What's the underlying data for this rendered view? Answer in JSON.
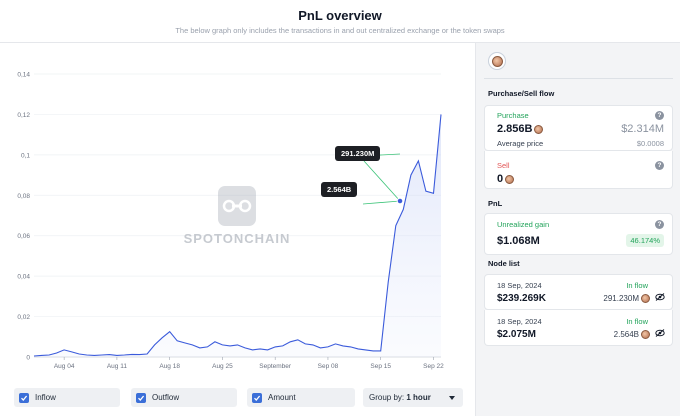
{
  "header": {
    "title": "PnL overview",
    "subtitle": "The below graph only includes the transactions in and out centralized exchange or the token swaps"
  },
  "watermark": "SPOTONCHAIN",
  "chart_data": {
    "type": "line",
    "title": "",
    "xlabel": "",
    "ylabel": "",
    "ylim": [
      0,
      0.14
    ],
    "y_ticks": [
      "0",
      "0,02",
      "0,04",
      "0,06",
      "0,08",
      "0,1",
      "0,12",
      "0,14"
    ],
    "x_ticks": [
      "Aug 04",
      "Aug 11",
      "Aug 18",
      "Aug 25",
      "September",
      "Sep 08",
      "Sep 15",
      "Sep 22"
    ],
    "x_dates": [
      "2024-07-31",
      "2024-08-04",
      "2024-08-11",
      "2024-08-18",
      "2024-08-25",
      "2024-09-01",
      "2024-09-08",
      "2024-09-15",
      "2024-09-22"
    ],
    "series": [
      {
        "color": "#3b5bdb",
        "x": [
          "2024-07-31",
          "2024-08-01",
          "2024-08-02",
          "2024-08-03",
          "2024-08-04",
          "2024-08-05",
          "2024-08-06",
          "2024-08-07",
          "2024-08-08",
          "2024-08-09",
          "2024-08-10",
          "2024-08-11",
          "2024-08-12",
          "2024-08-13",
          "2024-08-14",
          "2024-08-15",
          "2024-08-16",
          "2024-08-17",
          "2024-08-18",
          "2024-08-19",
          "2024-08-20",
          "2024-08-21",
          "2024-08-22",
          "2024-08-23",
          "2024-08-24",
          "2024-08-25",
          "2024-08-26",
          "2024-08-27",
          "2024-08-28",
          "2024-08-29",
          "2024-08-30",
          "2024-08-31",
          "2024-09-01",
          "2024-09-02",
          "2024-09-03",
          "2024-09-04",
          "2024-09-05",
          "2024-09-06",
          "2024-09-07",
          "2024-09-08",
          "2024-09-09",
          "2024-09-10",
          "2024-09-11",
          "2024-09-12",
          "2024-09-13",
          "2024-09-14",
          "2024-09-15",
          "2024-09-16",
          "2024-09-17",
          "2024-09-18",
          "2024-09-19",
          "2024-09-20",
          "2024-09-21",
          "2024-09-22",
          "2024-09-23"
        ],
        "values": [
          0.0005,
          0.0008,
          0.001,
          0.002,
          0.0035,
          0.0025,
          0.0015,
          0.001,
          0.0008,
          0.001,
          0.0012,
          0.0008,
          0.001,
          0.0013,
          0.0012,
          0.0015,
          0.006,
          0.0095,
          0.0125,
          0.008,
          0.007,
          0.006,
          0.0045,
          0.005,
          0.0075,
          0.006,
          0.0055,
          0.006,
          0.0045,
          0.0035,
          0.004,
          0.0035,
          0.005,
          0.0055,
          0.0075,
          0.0085,
          0.0065,
          0.006,
          0.0045,
          0.005,
          0.0065,
          0.0055,
          0.005,
          0.004,
          0.0035,
          0.003,
          0.003,
          0.037,
          0.065,
          0.073,
          0.09,
          0.097,
          0.082,
          0.081,
          0.12
        ]
      }
    ],
    "annotations": [
      {
        "label": "291.230M",
        "x": "2024-09-18"
      },
      {
        "label": "2.564B",
        "x": "2024-09-18"
      }
    ]
  },
  "controls": {
    "inflow": "Inflow",
    "outflow": "Outflow",
    "amount": "Amount",
    "group_prefix": "Group by:",
    "group_value": "1 hour"
  },
  "panel": {
    "purchase_sell_title": "Purchase/Sell flow",
    "purchase": {
      "label": "Purchase",
      "amount": "2.856B",
      "usd": "$2.314M",
      "avg_label": "Average price",
      "avg_value": "$0.0008"
    },
    "sell": {
      "label": "Sell",
      "amount": "0"
    },
    "pnl_title": "PnL",
    "unrealized": {
      "label": "Unrealized gain",
      "value": "$1.068M",
      "pct": "46.174%"
    },
    "node_list_title": "Node list",
    "nodes": [
      {
        "date": "18 Sep, 2024",
        "flow": "In flow",
        "usd": "$239.269K",
        "amount": "291.230M"
      },
      {
        "date": "18 Sep, 2024",
        "flow": "In flow",
        "usd": "$2.075M",
        "amount": "2.564B"
      }
    ]
  },
  "colors": {
    "line": "#3b5bdb",
    "accent": "#3b6fd8",
    "gain_green": "#22a35a",
    "sell_red": "#e25555"
  }
}
